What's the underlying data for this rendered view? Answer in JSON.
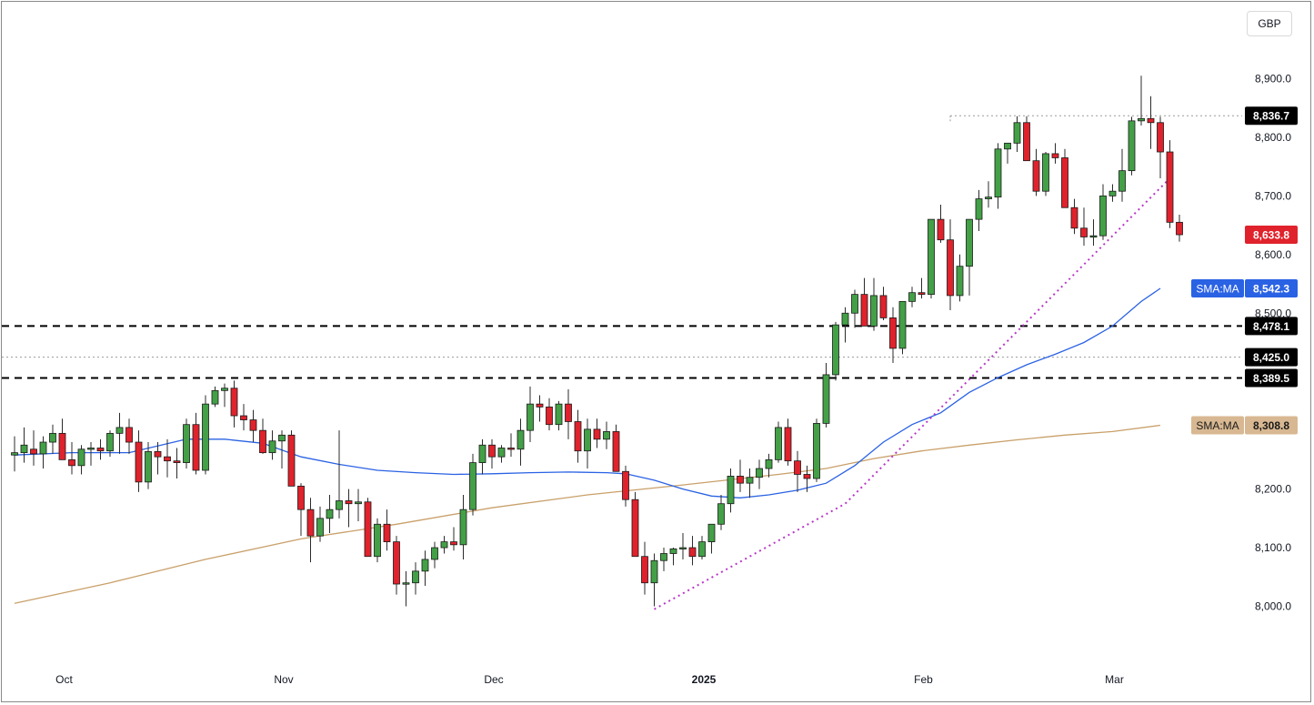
{
  "header": {
    "currency": "GBP"
  },
  "colors": {
    "up": "#43a047",
    "down": "#e0222c",
    "sma_fast": "#2a62e4",
    "sma_slow": "#c9a06a",
    "trendline": "#b838c8"
  },
  "chart_data": {
    "type": "candlestick",
    "y_ticks": [
      {
        "v": 8000,
        "label": "8,000.0"
      },
      {
        "v": 8100,
        "label": "8,100.0"
      },
      {
        "v": 8200,
        "label": "8,200.0"
      },
      {
        "v": 8500,
        "label": "8,500.0"
      },
      {
        "v": 8600,
        "label": "8,600.0"
      },
      {
        "v": 8700,
        "label": "8,700.0"
      },
      {
        "v": 8800,
        "label": "8,800.0"
      },
      {
        "v": 8900,
        "label": "8,900.0"
      }
    ],
    "x_ticks": [
      {
        "i": 5,
        "label": "Oct",
        "bold": false
      },
      {
        "i": 28,
        "label": "Nov",
        "bold": false
      },
      {
        "i": 50,
        "label": "Dec",
        "bold": false
      },
      {
        "i": 72,
        "label": "2025",
        "bold": true
      },
      {
        "i": 95,
        "label": "Feb",
        "bold": false
      },
      {
        "i": 115,
        "label": "Mar",
        "bold": false
      }
    ],
    "ohlc": [
      [
        8258,
        8290,
        8230,
        8262
      ],
      [
        8262,
        8305,
        8245,
        8275
      ],
      [
        8268,
        8300,
        8240,
        8260
      ],
      [
        8260,
        8290,
        8235,
        8280
      ],
      [
        8280,
        8310,
        8260,
        8295
      ],
      [
        8295,
        8320,
        8250,
        8250
      ],
      [
        8250,
        8280,
        8225,
        8240
      ],
      [
        8240,
        8275,
        8225,
        8268
      ],
      [
        8268,
        8280,
        8240,
        8270
      ],
      [
        8270,
        8285,
        8250,
        8265
      ],
      [
        8265,
        8300,
        8255,
        8295
      ],
      [
        8295,
        8330,
        8260,
        8305
      ],
      [
        8305,
        8320,
        8260,
        8280
      ],
      [
        8280,
        8300,
        8195,
        8212
      ],
      [
        8212,
        8280,
        8200,
        8264
      ],
      [
        8264,
        8280,
        8225,
        8255
      ],
      [
        8255,
        8285,
        8220,
        8248
      ],
      [
        8248,
        8270,
        8218,
        8245
      ],
      [
        8245,
        8320,
        8235,
        8310
      ],
      [
        8310,
        8330,
        8225,
        8232
      ],
      [
        8232,
        8360,
        8225,
        8345
      ],
      [
        8345,
        8375,
        8340,
        8368
      ],
      [
        8368,
        8380,
        8340,
        8372
      ],
      [
        8372,
        8385,
        8305,
        8325
      ],
      [
        8325,
        8345,
        8300,
        8318
      ],
      [
        8318,
        8335,
        8280,
        8300
      ],
      [
        8300,
        8320,
        8260,
        8262
      ],
      [
        8262,
        8300,
        8250,
        8282
      ],
      [
        8282,
        8300,
        8235,
        8292
      ],
      [
        8292,
        8300,
        8205,
        8205
      ],
      [
        8205,
        8210,
        8120,
        8165
      ],
      [
        8165,
        8185,
        8075,
        8120
      ],
      [
        8120,
        8170,
        8110,
        8150
      ],
      [
        8150,
        8190,
        8125,
        8165
      ],
      [
        8165,
        8300,
        8150,
        8180
      ],
      [
        8180,
        8200,
        8135,
        8175
      ],
      [
        8175,
        8200,
        8145,
        8178
      ],
      [
        8178,
        8185,
        8085,
        8085
      ],
      [
        8085,
        8150,
        8075,
        8140
      ],
      [
        8140,
        8165,
        8095,
        8110
      ],
      [
        8110,
        8120,
        8020,
        8038
      ],
      [
        8038,
        8060,
        8000,
        8040
      ],
      [
        8040,
        8075,
        8020,
        8060
      ],
      [
        8060,
        8095,
        8035,
        8080
      ],
      [
        8080,
        8110,
        8065,
        8100
      ],
      [
        8100,
        8120,
        8090,
        8110
      ],
      [
        8110,
        8135,
        8095,
        8105
      ],
      [
        8105,
        8190,
        8080,
        8165
      ],
      [
        8165,
        8260,
        8155,
        8245
      ],
      [
        8245,
        8285,
        8225,
        8275
      ],
      [
        8275,
        8285,
        8235,
        8255
      ],
      [
        8255,
        8275,
        8245,
        8270
      ],
      [
        8270,
        8295,
        8255,
        8268
      ],
      [
        8268,
        8320,
        8240,
        8300
      ],
      [
        8300,
        8375,
        8280,
        8345
      ],
      [
        8345,
        8360,
        8315,
        8340
      ],
      [
        8340,
        8355,
        8300,
        8310
      ],
      [
        8310,
        8350,
        8300,
        8345
      ],
      [
        8345,
        8370,
        8285,
        8315
      ],
      [
        8315,
        8335,
        8245,
        8265
      ],
      [
        8265,
        8320,
        8235,
        8302
      ],
      [
        8302,
        8320,
        8270,
        8285
      ],
      [
        8285,
        8315,
        8268,
        8298
      ],
      [
        8298,
        8310,
        8230,
        8230
      ],
      [
        8230,
        8240,
        8170,
        8182
      ],
      [
        8182,
        8195,
        8085,
        8085
      ],
      [
        8085,
        8110,
        8020,
        8040
      ],
      [
        8040,
        8090,
        8000,
        8078
      ],
      [
        8078,
        8100,
        8060,
        8090
      ],
      [
        8090,
        8100,
        8070,
        8098
      ],
      [
        8098,
        8125,
        8080,
        8100
      ],
      [
        8100,
        8120,
        8070,
        8085
      ],
      [
        8085,
        8120,
        8080,
        8110
      ],
      [
        8110,
        8140,
        8090,
        8140
      ],
      [
        8140,
        8190,
        8130,
        8175
      ],
      [
        8175,
        8235,
        8160,
        8222
      ],
      [
        8222,
        8250,
        8195,
        8210
      ],
      [
        8210,
        8235,
        8185,
        8220
      ],
      [
        8220,
        8250,
        8200,
        8235
      ],
      [
        8235,
        8260,
        8220,
        8250
      ],
      [
        8250,
        8315,
        8245,
        8305
      ],
      [
        8305,
        8320,
        8240,
        8248
      ],
      [
        8248,
        8265,
        8195,
        8225
      ],
      [
        8225,
        8240,
        8195,
        8218
      ],
      [
        8218,
        8320,
        8212,
        8312
      ],
      [
        8312,
        8415,
        8305,
        8395
      ],
      [
        8395,
        8485,
        8385,
        8480
      ],
      [
        8480,
        8510,
        8450,
        8500
      ],
      [
        8500,
        8540,
        8475,
        8532
      ],
      [
        8532,
        8560,
        8478,
        8478
      ],
      [
        8478,
        8560,
        8470,
        8530
      ],
      [
        8530,
        8545,
        8488,
        8492
      ],
      [
        8492,
        8510,
        8415,
        8440
      ],
      [
        8440,
        8520,
        8430,
        8520
      ],
      [
        8520,
        8545,
        8510,
        8535
      ],
      [
        8535,
        8560,
        8525,
        8532
      ],
      [
        8532,
        8660,
        8525,
        8660
      ],
      [
        8660,
        8685,
        8620,
        8625
      ],
      [
        8625,
        8660,
        8505,
        8530
      ],
      [
        8530,
        8600,
        8520,
        8580
      ],
      [
        8580,
        8660,
        8530,
        8660
      ],
      [
        8660,
        8710,
        8640,
        8695
      ],
      [
        8695,
        8725,
        8680,
        8698
      ],
      [
        8698,
        8790,
        8678,
        8780
      ],
      [
        8780,
        8790,
        8755,
        8790
      ],
      [
        8790,
        8836,
        8775,
        8825
      ],
      [
        8825,
        8836,
        8760,
        8760
      ],
      [
        8760,
        8780,
        8700,
        8708
      ],
      [
        8708,
        8775,
        8700,
        8772
      ],
      [
        8772,
        8790,
        8755,
        8765
      ],
      [
        8765,
        8780,
        8680,
        8680
      ],
      [
        8680,
        8695,
        8635,
        8645
      ],
      [
        8645,
        8680,
        8615,
        8630
      ],
      [
        8630,
        8660,
        8615,
        8632
      ],
      [
        8632,
        8720,
        8625,
        8700
      ],
      [
        8700,
        8720,
        8690,
        8708
      ],
      [
        8708,
        8780,
        8690,
        8743
      ],
      [
        8743,
        8835,
        8735,
        8828
      ],
      [
        8828,
        8905,
        8820,
        8832
      ],
      [
        8832,
        8870,
        8780,
        8825
      ],
      [
        8825,
        8835,
        8730,
        8775
      ],
      [
        8775,
        8795,
        8645,
        8655
      ],
      [
        8655,
        8668,
        8622,
        8633.8
      ]
    ],
    "sma_fast": [
      [
        0,
        8258
      ],
      [
        6,
        8262
      ],
      [
        12,
        8262
      ],
      [
        18,
        8285
      ],
      [
        22,
        8285
      ],
      [
        26,
        8278
      ],
      [
        30,
        8255
      ],
      [
        34,
        8242
      ],
      [
        38,
        8232
      ],
      [
        42,
        8228
      ],
      [
        46,
        8225
      ],
      [
        50,
        8226
      ],
      [
        54,
        8228
      ],
      [
        58,
        8229
      ],
      [
        62,
        8228
      ],
      [
        64,
        8226
      ],
      [
        67,
        8215
      ],
      [
        70,
        8200
      ],
      [
        73,
        8188
      ],
      [
        76,
        8185
      ],
      [
        79,
        8190
      ],
      [
        82,
        8198
      ],
      [
        85,
        8210
      ],
      [
        88,
        8240
      ],
      [
        91,
        8280
      ],
      [
        94,
        8310
      ],
      [
        97,
        8330
      ],
      [
        100,
        8365
      ],
      [
        103,
        8390
      ],
      [
        106,
        8412
      ],
      [
        109,
        8430
      ],
      [
        112,
        8450
      ],
      [
        115,
        8478
      ],
      [
        118,
        8520
      ],
      [
        120,
        8542.3
      ]
    ],
    "sma_slow": [
      [
        0,
        8005
      ],
      [
        10,
        8040
      ],
      [
        20,
        8080
      ],
      [
        30,
        8115
      ],
      [
        40,
        8140
      ],
      [
        50,
        8168
      ],
      [
        60,
        8190
      ],
      [
        70,
        8207
      ],
      [
        80,
        8225
      ],
      [
        85,
        8235
      ],
      [
        90,
        8252
      ],
      [
        95,
        8265
      ],
      [
        100,
        8275
      ],
      [
        105,
        8284
      ],
      [
        110,
        8292
      ],
      [
        115,
        8298
      ],
      [
        120,
        8308.8
      ]
    ],
    "trendline": [
      [
        67,
        7995
      ],
      [
        87,
        8175
      ],
      [
        121,
        8730
      ]
    ],
    "hlines": [
      {
        "v": 8836.7,
        "label": "8,836.7",
        "style": "dotted-gray",
        "from": 98
      },
      {
        "v": 8478.1,
        "label": "8,478.1",
        "style": "dashed-black",
        "from": 0
      },
      {
        "v": 8425.0,
        "label": "8,425.0",
        "style": "dotted-gray",
        "from": 0
      },
      {
        "v": 8389.5,
        "label": "8,389.5",
        "style": "dashed-black",
        "from": 0
      }
    ],
    "price_labels": [
      {
        "v": 8633.8,
        "label": "8,633.8",
        "kind": "last"
      },
      {
        "v": 8542.3,
        "label": "8,542.3",
        "kind": "sma_fast",
        "tag": "SMA:MA"
      },
      {
        "v": 8308.8,
        "label": "8,308.8",
        "kind": "sma_slow",
        "tag": "SMA:MA"
      }
    ]
  }
}
